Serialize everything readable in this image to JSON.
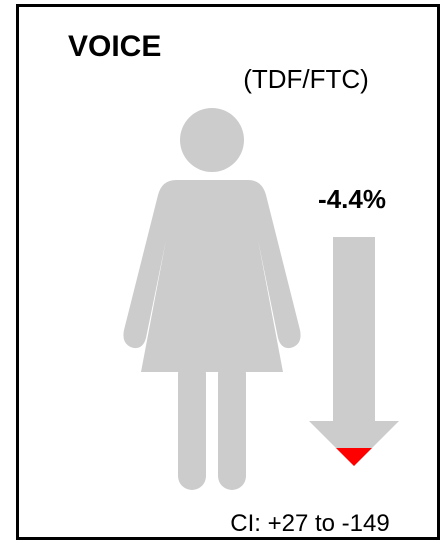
{
  "title": "VOICE",
  "subtitle": "(TDF/FTC)",
  "change": "-4.4%",
  "confidence_interval": "CI: +27 to -149"
}
